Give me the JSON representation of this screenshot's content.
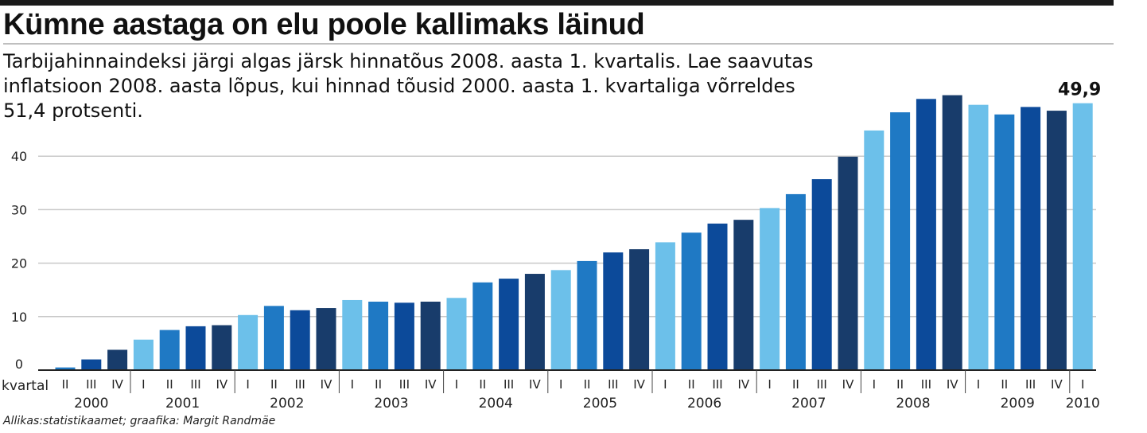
{
  "header": {
    "title": "Kümne aastaga on elu poole kallimaks läinud",
    "subtitle_lines": [
      "Tarbijahinnaindeksi järgi algas järsk hinnatõus 2008. aasta 1. kvartalis. Lae saavutas",
      "inflatsioon 2008. aasta lõpus, kui hinnad tõusid 2000. aasta 1. kvartaliga võrreldes",
      "51,4 protsenti."
    ]
  },
  "source": "Allikas:statistikaamet; graafika: Margit Randmäe",
  "colors": {
    "q1": "#6cc0ea",
    "q2": "#1f79c4",
    "q3": "#0c4a9a",
    "q4": "#183c6b",
    "grid": "#c8c8c8",
    "axis": "#222222"
  },
  "chart_data": {
    "type": "bar",
    "title": "Kümne aastaga on elu poole kallimaks läinud",
    "xlabel": "kvartal",
    "ylabel": "",
    "ylim": [
      0,
      50
    ],
    "yticks": [
      0,
      10,
      20,
      30,
      40
    ],
    "grid": true,
    "x_axis_label": "kvartal",
    "years": [
      "2000",
      "2001",
      "2002",
      "2003",
      "2004",
      "2005",
      "2006",
      "2007",
      "2008",
      "2009",
      "2010"
    ],
    "categories": [
      {
        "year": "2000",
        "quarter": "II",
        "value": 0.5
      },
      {
        "year": "2000",
        "quarter": "III",
        "value": 2.0
      },
      {
        "year": "2000",
        "quarter": "IV",
        "value": 3.8
      },
      {
        "year": "2001",
        "quarter": "I",
        "value": 5.7
      },
      {
        "year": "2001",
        "quarter": "II",
        "value": 7.5
      },
      {
        "year": "2001",
        "quarter": "III",
        "value": 8.2
      },
      {
        "year": "2001",
        "quarter": "IV",
        "value": 8.4
      },
      {
        "year": "2002",
        "quarter": "I",
        "value": 10.3
      },
      {
        "year": "2002",
        "quarter": "II",
        "value": 12.0
      },
      {
        "year": "2002",
        "quarter": "III",
        "value": 11.2
      },
      {
        "year": "2002",
        "quarter": "IV",
        "value": 11.6
      },
      {
        "year": "2003",
        "quarter": "I",
        "value": 13.1
      },
      {
        "year": "2003",
        "quarter": "II",
        "value": 12.8
      },
      {
        "year": "2003",
        "quarter": "III",
        "value": 12.6
      },
      {
        "year": "2003",
        "quarter": "IV",
        "value": 12.8
      },
      {
        "year": "2004",
        "quarter": "I",
        "value": 13.5
      },
      {
        "year": "2004",
        "quarter": "II",
        "value": 16.4
      },
      {
        "year": "2004",
        "quarter": "III",
        "value": 17.1
      },
      {
        "year": "2004",
        "quarter": "IV",
        "value": 18.0
      },
      {
        "year": "2005",
        "quarter": "I",
        "value": 18.7
      },
      {
        "year": "2005",
        "quarter": "II",
        "value": 20.4
      },
      {
        "year": "2005",
        "quarter": "III",
        "value": 22.0
      },
      {
        "year": "2005",
        "quarter": "IV",
        "value": 22.6
      },
      {
        "year": "2006",
        "quarter": "I",
        "value": 23.9
      },
      {
        "year": "2006",
        "quarter": "II",
        "value": 25.7
      },
      {
        "year": "2006",
        "quarter": "III",
        "value": 27.4
      },
      {
        "year": "2006",
        "quarter": "IV",
        "value": 28.1
      },
      {
        "year": "2007",
        "quarter": "I",
        "value": 30.3
      },
      {
        "year": "2007",
        "quarter": "II",
        "value": 32.9
      },
      {
        "year": "2007",
        "quarter": "III",
        "value": 35.7
      },
      {
        "year": "2007",
        "quarter": "IV",
        "value": 39.9
      },
      {
        "year": "2008",
        "quarter": "I",
        "value": 44.8
      },
      {
        "year": "2008",
        "quarter": "II",
        "value": 48.2
      },
      {
        "year": "2008",
        "quarter": "III",
        "value": 50.7
      },
      {
        "year": "2008",
        "quarter": "IV",
        "value": 51.4
      },
      {
        "year": "2009",
        "quarter": "I",
        "value": 49.6
      },
      {
        "year": "2009",
        "quarter": "II",
        "value": 47.8
      },
      {
        "year": "2009",
        "quarter": "III",
        "value": 49.2
      },
      {
        "year": "2009",
        "quarter": "IV",
        "value": 48.5
      },
      {
        "year": "2010",
        "quarter": "I",
        "value": 49.9
      }
    ],
    "data_labels": [
      {
        "year": "2010",
        "quarter": "I",
        "text": "49,9"
      }
    ]
  }
}
